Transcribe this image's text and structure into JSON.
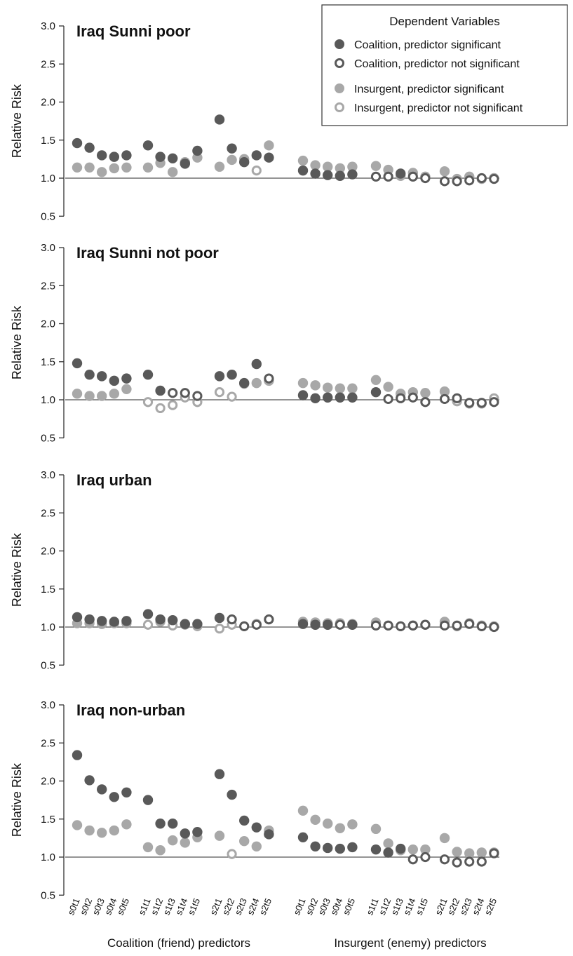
{
  "colors": {
    "coalition": "#595959",
    "insurgent": "#a8a8a8",
    "axis": "#333333",
    "refline": "#555555"
  },
  "legend": {
    "title": "Dependent Variables",
    "entries": [
      {
        "label": "Coalition, predictor significant",
        "series": "coalition",
        "filled": true
      },
      {
        "label": "Coalition, predictor not significant",
        "series": "coalition",
        "filled": false
      },
      {
        "label": "Insurgent, predictor significant",
        "series": "insurgent",
        "filled": true
      },
      {
        "label": "Insurgent, predictor not significant",
        "series": "insurgent",
        "filled": false
      }
    ]
  },
  "group_labels": [
    "Coalition (friend) predictors",
    "Insurgent (enemy) predictors"
  ],
  "ylabel": "Relative Risk",
  "x_tick_labels": [
    "s0t1",
    "s0t2",
    "s0t3",
    "s0t4",
    "s0t5",
    "s1t1",
    "s1t2",
    "s1t3",
    "s1t4",
    "s1t5",
    "s2t1",
    "s2t2",
    "s2t3",
    "s2t4",
    "s2t5",
    "s0t1",
    "s0t2",
    "s0t3",
    "s0t4",
    "s0t5",
    "s1t1",
    "s1t2",
    "s1t3",
    "s1t4",
    "s1t5",
    "s2t1",
    "s2t2",
    "s2t3",
    "s2t4",
    "s2t5"
  ],
  "chart_data": [
    {
      "type": "scatter",
      "title": "Iraq Sunni poor",
      "ylabel": "Relative Risk",
      "ylim": [
        0.5,
        3.0
      ],
      "yticks": [
        "0.5",
        "1.0",
        "1.5",
        "2.0",
        "2.5",
        "3.0"
      ],
      "reference_line": 1.0,
      "coalition": {
        "values": [
          1.46,
          1.4,
          1.3,
          1.28,
          1.3,
          1.43,
          1.28,
          1.26,
          1.19,
          1.36,
          1.77,
          1.39,
          1.21,
          1.3,
          1.27,
          1.1,
          1.06,
          1.04,
          1.03,
          1.05,
          1.02,
          1.02,
          1.06,
          1.02,
          1.0,
          0.96,
          0.96,
          0.97,
          1.0,
          0.99
        ],
        "significant": [
          true,
          true,
          true,
          true,
          true,
          true,
          true,
          true,
          true,
          true,
          true,
          true,
          true,
          true,
          true,
          true,
          true,
          true,
          true,
          true,
          false,
          false,
          true,
          false,
          false,
          false,
          false,
          false,
          false,
          false
        ]
      },
      "insurgent": {
        "values": [
          1.14,
          1.14,
          1.08,
          1.13,
          1.14,
          1.14,
          1.2,
          1.08,
          1.21,
          1.27,
          1.15,
          1.24,
          1.25,
          1.1,
          1.43,
          1.23,
          1.17,
          1.15,
          1.13,
          1.15,
          1.16,
          1.11,
          1.03,
          1.07,
          1.02,
          1.09,
          0.99,
          1.02,
          0.99,
          1.0
        ],
        "significant": [
          true,
          true,
          true,
          true,
          true,
          true,
          true,
          true,
          true,
          true,
          true,
          true,
          true,
          false,
          true,
          true,
          true,
          true,
          true,
          true,
          true,
          true,
          true,
          true,
          true,
          true,
          true,
          true,
          true,
          true
        ]
      }
    },
    {
      "type": "scatter",
      "title": "Iraq Sunni not poor",
      "ylabel": "Relative Risk",
      "ylim": [
        0.5,
        3.0
      ],
      "yticks": [
        "0.5",
        "1.0",
        "1.5",
        "2.0",
        "2.5",
        "3.0"
      ],
      "reference_line": 1.0,
      "coalition": {
        "values": [
          1.48,
          1.33,
          1.31,
          1.25,
          1.28,
          1.33,
          1.12,
          1.09,
          1.09,
          1.05,
          1.31,
          1.33,
          1.22,
          1.47,
          1.28,
          1.06,
          1.02,
          1.03,
          1.03,
          1.03,
          1.1,
          1.01,
          1.02,
          1.03,
          0.97,
          1.01,
          1.02,
          0.96,
          0.96,
          0.97
        ],
        "significant": [
          true,
          true,
          true,
          true,
          true,
          true,
          true,
          false,
          false,
          false,
          true,
          true,
          true,
          true,
          false,
          true,
          true,
          true,
          true,
          true,
          true,
          false,
          false,
          false,
          false,
          false,
          false,
          false,
          false,
          false
        ]
      },
      "insurgent": {
        "values": [
          1.08,
          1.05,
          1.05,
          1.08,
          1.14,
          0.97,
          0.89,
          0.93,
          1.03,
          0.97,
          1.1,
          1.04,
          1.21,
          1.22,
          1.25,
          1.22,
          1.19,
          1.16,
          1.15,
          1.15,
          1.26,
          1.17,
          1.08,
          1.1,
          1.09,
          1.11,
          0.98,
          0.95,
          0.95,
          1.02
        ],
        "significant": [
          true,
          true,
          true,
          true,
          true,
          false,
          false,
          false,
          false,
          false,
          false,
          false,
          true,
          true,
          true,
          true,
          true,
          true,
          true,
          true,
          true,
          true,
          true,
          true,
          true,
          true,
          false,
          false,
          false,
          false
        ]
      }
    },
    {
      "type": "scatter",
      "title": "Iraq urban",
      "ylabel": "Relative Risk",
      "ylim": [
        0.5,
        3.0
      ],
      "yticks": [
        "0.5",
        "1.0",
        "1.5",
        "2.0",
        "2.5",
        "3.0"
      ],
      "reference_line": 1.0,
      "coalition": {
        "values": [
          1.13,
          1.1,
          1.08,
          1.07,
          1.08,
          1.17,
          1.1,
          1.09,
          1.04,
          1.04,
          1.12,
          1.1,
          1.01,
          1.03,
          1.1,
          1.04,
          1.03,
          1.03,
          1.03,
          1.03,
          1.02,
          1.02,
          1.01,
          1.02,
          1.03,
          1.02,
          1.02,
          1.04,
          1.01,
          1.0
        ],
        "significant": [
          true,
          true,
          true,
          true,
          true,
          true,
          true,
          true,
          true,
          true,
          true,
          false,
          false,
          false,
          false,
          true,
          true,
          true,
          false,
          true,
          false,
          false,
          false,
          false,
          false,
          false,
          false,
          false,
          false,
          false
        ]
      },
      "insurgent": {
        "values": [
          1.05,
          1.05,
          1.04,
          1.05,
          1.05,
          1.03,
          1.07,
          1.02,
          1.03,
          1.01,
          0.98,
          1.03,
          1.01,
          1.04,
          1.1,
          1.07,
          1.06,
          1.05,
          1.05,
          1.04,
          1.06,
          1.02,
          1.01,
          1.02,
          1.03,
          1.07,
          1.01,
          1.05,
          1.02,
          1.01
        ],
        "significant": [
          true,
          true,
          true,
          true,
          true,
          false,
          true,
          false,
          false,
          false,
          false,
          false,
          false,
          true,
          false,
          true,
          true,
          true,
          true,
          true,
          true,
          false,
          false,
          true,
          true,
          true,
          true,
          true,
          true,
          true
        ]
      }
    },
    {
      "type": "scatter",
      "title": "Iraq non-urban",
      "ylabel": "Relative Risk",
      "ylim": [
        0.5,
        3.0
      ],
      "yticks": [
        "0.5",
        "1.0",
        "1.5",
        "2.0",
        "2.5",
        "3.0"
      ],
      "reference_line": 1.0,
      "coalition": {
        "values": [
          2.34,
          2.01,
          1.89,
          1.79,
          1.85,
          1.75,
          1.44,
          1.44,
          1.31,
          1.33,
          2.09,
          1.82,
          1.48,
          1.39,
          1.3,
          1.26,
          1.14,
          1.12,
          1.11,
          1.13,
          1.1,
          1.06,
          1.11,
          0.97,
          1.0,
          0.97,
          0.93,
          0.94,
          0.94,
          1.05
        ],
        "significant": [
          true,
          true,
          true,
          true,
          true,
          true,
          true,
          true,
          true,
          true,
          true,
          true,
          true,
          true,
          true,
          true,
          true,
          true,
          true,
          true,
          true,
          true,
          true,
          false,
          false,
          false,
          false,
          false,
          false,
          false
        ]
      },
      "insurgent": {
        "values": [
          1.42,
          1.35,
          1.32,
          1.35,
          1.43,
          1.13,
          1.09,
          1.22,
          1.19,
          1.26,
          1.28,
          1.04,
          1.21,
          1.14,
          1.35,
          1.61,
          1.49,
          1.44,
          1.38,
          1.43,
          1.37,
          1.18,
          1.09,
          1.1,
          1.1,
          1.25,
          1.07,
          1.05,
          1.06,
          1.06
        ],
        "significant": [
          true,
          true,
          true,
          true,
          true,
          true,
          true,
          true,
          true,
          true,
          true,
          false,
          true,
          true,
          true,
          true,
          true,
          true,
          true,
          true,
          true,
          true,
          true,
          true,
          true,
          true,
          true,
          true,
          true,
          true
        ]
      }
    }
  ]
}
